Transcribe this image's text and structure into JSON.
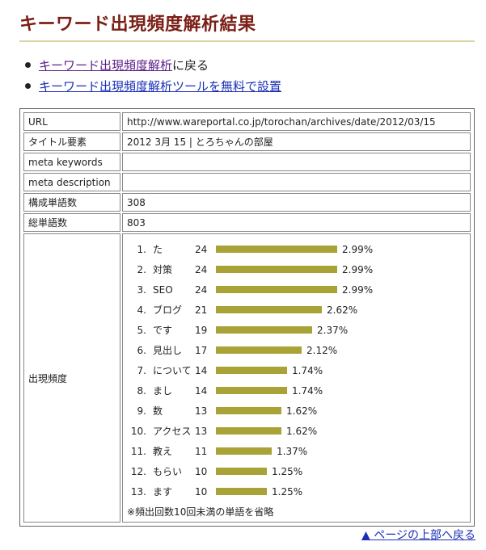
{
  "page": {
    "title": "キーワード出現頻度解析結果"
  },
  "links": [
    {
      "label": "キーワード出現頻度解析",
      "suffix": "に戻る"
    },
    {
      "label": "キーワード出現頻度解析ツールを無料で設置",
      "suffix": ""
    }
  ],
  "result": {
    "rows": [
      {
        "key": "URL",
        "value": "http://www.wareportal.co.jp/torochan/archives/date/2012/03/15"
      },
      {
        "key": "タイトル要素",
        "value": "2012 3月 15 | とろちゃんの部屋"
      },
      {
        "key": "meta keywords",
        "value": ""
      },
      {
        "key": "meta description",
        "value": ""
      },
      {
        "key": "構成単語数",
        "value": "308"
      },
      {
        "key": "総単語数",
        "value": "803"
      }
    ],
    "frequency_label": "出現頻度",
    "frequency": [
      {
        "rank": "1.",
        "word": "た",
        "count": 24,
        "percent": "2.99%"
      },
      {
        "rank": "2.",
        "word": "対策",
        "count": 24,
        "percent": "2.99%"
      },
      {
        "rank": "3.",
        "word": "SEO",
        "count": 24,
        "percent": "2.99%"
      },
      {
        "rank": "4.",
        "word": "ブログ",
        "count": 21,
        "percent": "2.62%"
      },
      {
        "rank": "5.",
        "word": "です",
        "count": 19,
        "percent": "2.37%"
      },
      {
        "rank": "6.",
        "word": "見出し",
        "count": 17,
        "percent": "2.12%"
      },
      {
        "rank": "7.",
        "word": "について",
        "count": 14,
        "percent": "1.74%"
      },
      {
        "rank": "8.",
        "word": "まし",
        "count": 14,
        "percent": "1.74%"
      },
      {
        "rank": "9.",
        "word": "数",
        "count": 13,
        "percent": "1.62%"
      },
      {
        "rank": "10.",
        "word": "アクセス",
        "count": 13,
        "percent": "1.62%"
      },
      {
        "rank": "11.",
        "word": "教え",
        "count": 11,
        "percent": "1.37%"
      },
      {
        "rank": "12.",
        "word": "もらい",
        "count": 10,
        "percent": "1.25%"
      },
      {
        "rank": "13.",
        "word": "ます",
        "count": 10,
        "percent": "1.25%"
      }
    ],
    "note": "※頻出回数10回未満の単語を省略"
  },
  "footer": {
    "back_to_top": "▲ ページの上部へ戻る"
  },
  "colors": {
    "title": "#7a1f16",
    "bar": "#a9a237",
    "link_visited": "#5b1f8a",
    "link": "#1a2fb8"
  }
}
